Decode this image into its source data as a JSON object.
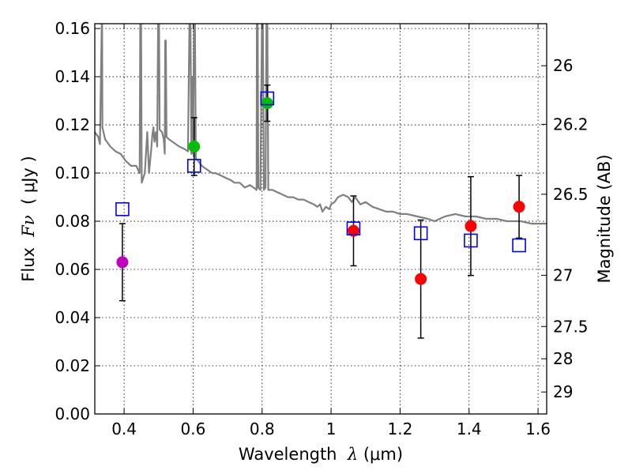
{
  "chart_data": {
    "type": "scatter",
    "title": "",
    "xlabel": {
      "prefix": "Wavelength  ",
      "symbol": "λ",
      "unit": " (μm)"
    },
    "ylabel": {
      "prefix": "Flux  ",
      "symbol": "Fν",
      "unit": "  ( μJy )"
    },
    "y2label": "Magnitude (AB)",
    "xlim": [
      0.315,
      1.625
    ],
    "ylim": [
      0.0,
      0.162
    ],
    "grid": true,
    "legend": "none",
    "x_ticks": [
      {
        "v": 0.4,
        "label": "0.4"
      },
      {
        "v": 0.6,
        "label": "0.6"
      },
      {
        "v": 0.8,
        "label": "0.8"
      },
      {
        "v": 1.0,
        "label": "1"
      },
      {
        "v": 1.2,
        "label": "1.2"
      },
      {
        "v": 1.4,
        "label": "1.4"
      },
      {
        "v": 1.6,
        "label": "1.6"
      }
    ],
    "y_ticks": [
      {
        "v": 0.0,
        "label": "0.00"
      },
      {
        "v": 0.02,
        "label": "0.02"
      },
      {
        "v": 0.04,
        "label": "0.04"
      },
      {
        "v": 0.06,
        "label": "0.06"
      },
      {
        "v": 0.08,
        "label": "0.08"
      },
      {
        "v": 0.1,
        "label": "0.10"
      },
      {
        "v": 0.12,
        "label": "0.12"
      },
      {
        "v": 0.14,
        "label": "0.14"
      },
      {
        "v": 0.16,
        "label": "0.16"
      }
    ],
    "y2_ticks": [
      {
        "mag": 26,
        "label": "26"
      },
      {
        "mag": 26.2,
        "label": "26.2"
      },
      {
        "mag": 26.5,
        "label": "26.5"
      },
      {
        "mag": 27,
        "label": "27"
      },
      {
        "mag": 27.5,
        "label": "27.5"
      },
      {
        "mag": 28,
        "label": "28"
      },
      {
        "mag": 29,
        "label": "29"
      }
    ],
    "model_spectrum": {
      "color": "#808080",
      "points": [
        [
          0.315,
          0.117
        ],
        [
          0.325,
          0.115
        ],
        [
          0.33,
          0.112
        ],
        [
          0.335,
          0.16
        ],
        [
          0.336,
          0.17
        ],
        [
          0.337,
          0.119
        ],
        [
          0.345,
          0.114
        ],
        [
          0.36,
          0.111
        ],
        [
          0.375,
          0.109
        ],
        [
          0.39,
          0.108
        ],
        [
          0.405,
          0.105
        ],
        [
          0.42,
          0.103
        ],
        [
          0.435,
          0.103
        ],
        [
          0.445,
          0.1
        ],
        [
          0.447,
          0.17
        ],
        [
          0.449,
          0.17
        ],
        [
          0.451,
          0.096
        ],
        [
          0.46,
          0.1
        ],
        [
          0.465,
          0.112
        ],
        [
          0.467,
          0.117
        ],
        [
          0.472,
          0.1
        ],
        [
          0.478,
          0.109
        ],
        [
          0.482,
          0.116
        ],
        [
          0.485,
          0.119
        ],
        [
          0.488,
          0.113
        ],
        [
          0.492,
          0.117
        ],
        [
          0.496,
          0.111
        ],
        [
          0.499,
          0.17
        ],
        [
          0.501,
          0.17
        ],
        [
          0.503,
          0.118
        ],
        [
          0.51,
          0.117
        ],
        [
          0.515,
          0.114
        ],
        [
          0.518,
          0.108
        ],
        [
          0.519,
          0.155
        ],
        [
          0.521,
          0.155
        ],
        [
          0.523,
          0.115
        ],
        [
          0.53,
          0.114
        ],
        [
          0.54,
          0.113
        ],
        [
          0.55,
          0.112
        ],
        [
          0.56,
          0.111
        ],
        [
          0.575,
          0.11
        ],
        [
          0.585,
          0.109
        ],
        [
          0.59,
          0.17
        ],
        [
          0.592,
          0.17
        ],
        [
          0.595,
          0.108
        ],
        [
          0.598,
          0.14
        ],
        [
          0.6,
          0.108
        ],
        [
          0.603,
          0.17
        ],
        [
          0.605,
          0.17
        ],
        [
          0.608,
          0.106
        ],
        [
          0.615,
          0.105
        ],
        [
          0.625,
          0.103
        ],
        [
          0.635,
          0.102
        ],
        [
          0.645,
          0.101
        ],
        [
          0.655,
          0.1
        ],
        [
          0.665,
          0.1
        ],
        [
          0.68,
          0.099
        ],
        [
          0.695,
          0.098
        ],
        [
          0.71,
          0.097
        ],
        [
          0.72,
          0.096
        ],
        [
          0.735,
          0.096
        ],
        [
          0.75,
          0.094
        ],
        [
          0.765,
          0.095
        ],
        [
          0.775,
          0.094
        ],
        [
          0.784,
          0.093
        ],
        [
          0.785,
          0.17
        ],
        [
          0.787,
          0.17
        ],
        [
          0.789,
          0.094
        ],
        [
          0.795,
          0.093
        ],
        [
          0.8,
          0.17
        ],
        [
          0.802,
          0.17
        ],
        [
          0.805,
          0.093
        ],
        [
          0.81,
          0.094
        ],
        [
          0.813,
          0.17
        ],
        [
          0.815,
          0.17
        ],
        [
          0.818,
          0.093
        ],
        [
          0.83,
          0.093
        ],
        [
          0.845,
          0.092
        ],
        [
          0.86,
          0.091
        ],
        [
          0.875,
          0.09
        ],
        [
          0.89,
          0.09
        ],
        [
          0.905,
          0.089
        ],
        [
          0.92,
          0.089
        ],
        [
          0.935,
          0.088
        ],
        [
          0.95,
          0.087
        ],
        [
          0.96,
          0.086
        ],
        [
          0.968,
          0.087
        ],
        [
          0.975,
          0.084
        ],
        [
          0.985,
          0.086
        ],
        [
          0.995,
          0.085
        ],
        [
          1.0,
          0.087
        ],
        [
          1.01,
          0.088
        ],
        [
          1.02,
          0.09
        ],
        [
          1.035,
          0.091
        ],
        [
          1.05,
          0.09
        ],
        [
          1.06,
          0.088
        ],
        [
          1.07,
          0.09
        ],
        [
          1.085,
          0.087
        ],
        [
          1.1,
          0.088
        ],
        [
          1.12,
          0.086
        ],
        [
          1.14,
          0.085
        ],
        [
          1.16,
          0.084
        ],
        [
          1.18,
          0.084
        ],
        [
          1.2,
          0.083
        ],
        [
          1.22,
          0.083
        ],
        [
          1.25,
          0.082
        ],
        [
          1.28,
          0.081
        ],
        [
          1.3,
          0.08
        ],
        [
          1.33,
          0.082
        ],
        [
          1.36,
          0.083
        ],
        [
          1.39,
          0.082
        ],
        [
          1.42,
          0.082
        ],
        [
          1.45,
          0.081
        ],
        [
          1.48,
          0.081
        ],
        [
          1.51,
          0.08
        ],
        [
          1.55,
          0.08
        ],
        [
          1.58,
          0.079
        ],
        [
          1.625,
          0.079
        ]
      ]
    },
    "model_points": {
      "color": "#0000ff",
      "marker": "open-square",
      "points": [
        {
          "x": 0.395,
          "y": 0.085
        },
        {
          "x": 0.603,
          "y": 0.103
        },
        {
          "x": 0.815,
          "y": 0.131
        },
        {
          "x": 1.065,
          "y": 0.077
        },
        {
          "x": 1.26,
          "y": 0.075
        },
        {
          "x": 1.405,
          "y": 0.072
        },
        {
          "x": 1.545,
          "y": 0.07
        }
      ]
    },
    "observed_points": {
      "marker": "filled-circle",
      "points": [
        {
          "x": 0.395,
          "y": 0.063,
          "err": 0.016,
          "color": "#bf00bf"
        },
        {
          "x": 0.603,
          "y": 0.111,
          "err": 0.012,
          "color": "#00bf00"
        },
        {
          "x": 0.815,
          "y": 0.129,
          "err": 0.0075,
          "color": "#00bf00"
        },
        {
          "x": 1.065,
          "y": 0.076,
          "err": 0.0145,
          "color": "#ff0000"
        },
        {
          "x": 1.26,
          "y": 0.056,
          "err": 0.0245,
          "color": "#ff0000"
        },
        {
          "x": 1.405,
          "y": 0.078,
          "err": 0.0205,
          "color": "#ff0000"
        },
        {
          "x": 1.545,
          "y": 0.086,
          "err": 0.013,
          "color": "#ff0000"
        }
      ]
    },
    "errorbar_color": "#000000"
  }
}
